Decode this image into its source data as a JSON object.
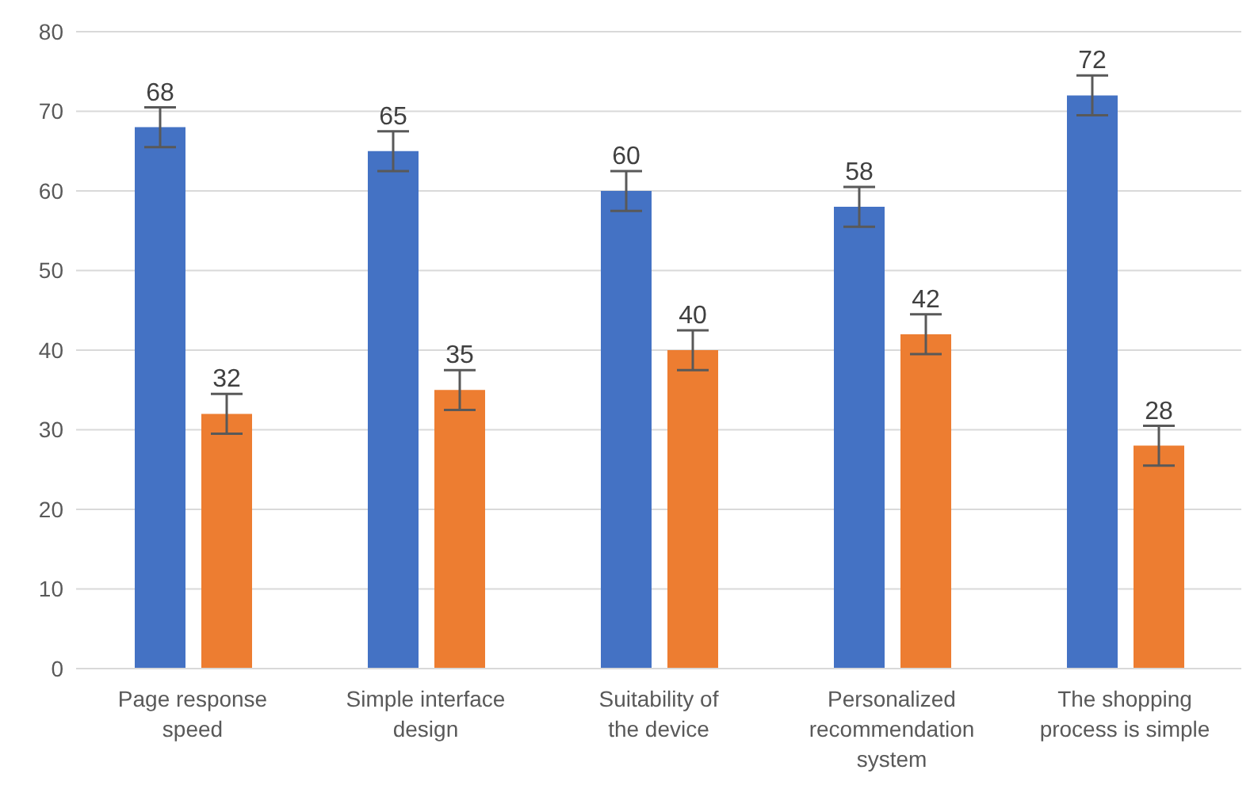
{
  "chart_data": {
    "type": "bar",
    "categories": [
      "Page response speed",
      "Simple interface design",
      "Suitability of the device",
      "Personalized recommendation system",
      "The shopping process is simple"
    ],
    "series": [
      {
        "color": "#4472c4",
        "values": [
          68,
          65,
          60,
          58,
          72
        ],
        "errors": [
          2.5,
          2.5,
          2.5,
          2.5,
          2.5
        ]
      },
      {
        "color": "#ed7d31",
        "values": [
          32,
          35,
          40,
          42,
          28
        ],
        "errors": [
          2.5,
          2.5,
          2.5,
          2.5,
          2.5
        ]
      }
    ],
    "ylim": [
      0,
      80
    ],
    "yticks": [
      0,
      10,
      20,
      30,
      40,
      50,
      60,
      70,
      80
    ],
    "grid": "y",
    "legend": false,
    "data_labels": true
  }
}
